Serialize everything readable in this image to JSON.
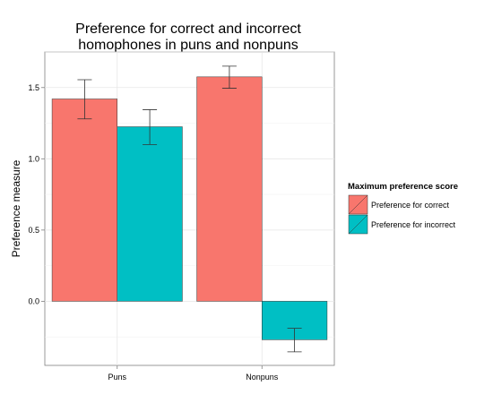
{
  "chart_data": {
    "type": "bar",
    "title_lines": [
      "Preference for correct and incorrect",
      "homophones in puns and nonpuns"
    ],
    "xlabel": "",
    "ylabel": "Preference measure",
    "categories": [
      "Puns",
      "Nonpuns"
    ],
    "ylim": [
      -0.45,
      1.75
    ],
    "yticks": [
      0.0,
      0.5,
      1.0,
      1.5
    ],
    "ytick_labels": [
      "0.0",
      "0.5",
      "1.0",
      "1.5"
    ],
    "grid": true,
    "legend": {
      "title": "Maximum preference score",
      "placement": "right"
    },
    "series": [
      {
        "name": "Preference for correct",
        "color": "#F8766D",
        "values": [
          1.42,
          1.575
        ],
        "err_low": [
          1.28,
          1.495
        ],
        "err_high": [
          1.555,
          1.65
        ]
      },
      {
        "name": "Preference for incorrect",
        "color": "#00BFC4",
        "values": [
          1.225,
          -0.27
        ],
        "err_low": [
          1.1,
          -0.355
        ],
        "err_high": [
          1.345,
          -0.19
        ]
      }
    ]
  }
}
